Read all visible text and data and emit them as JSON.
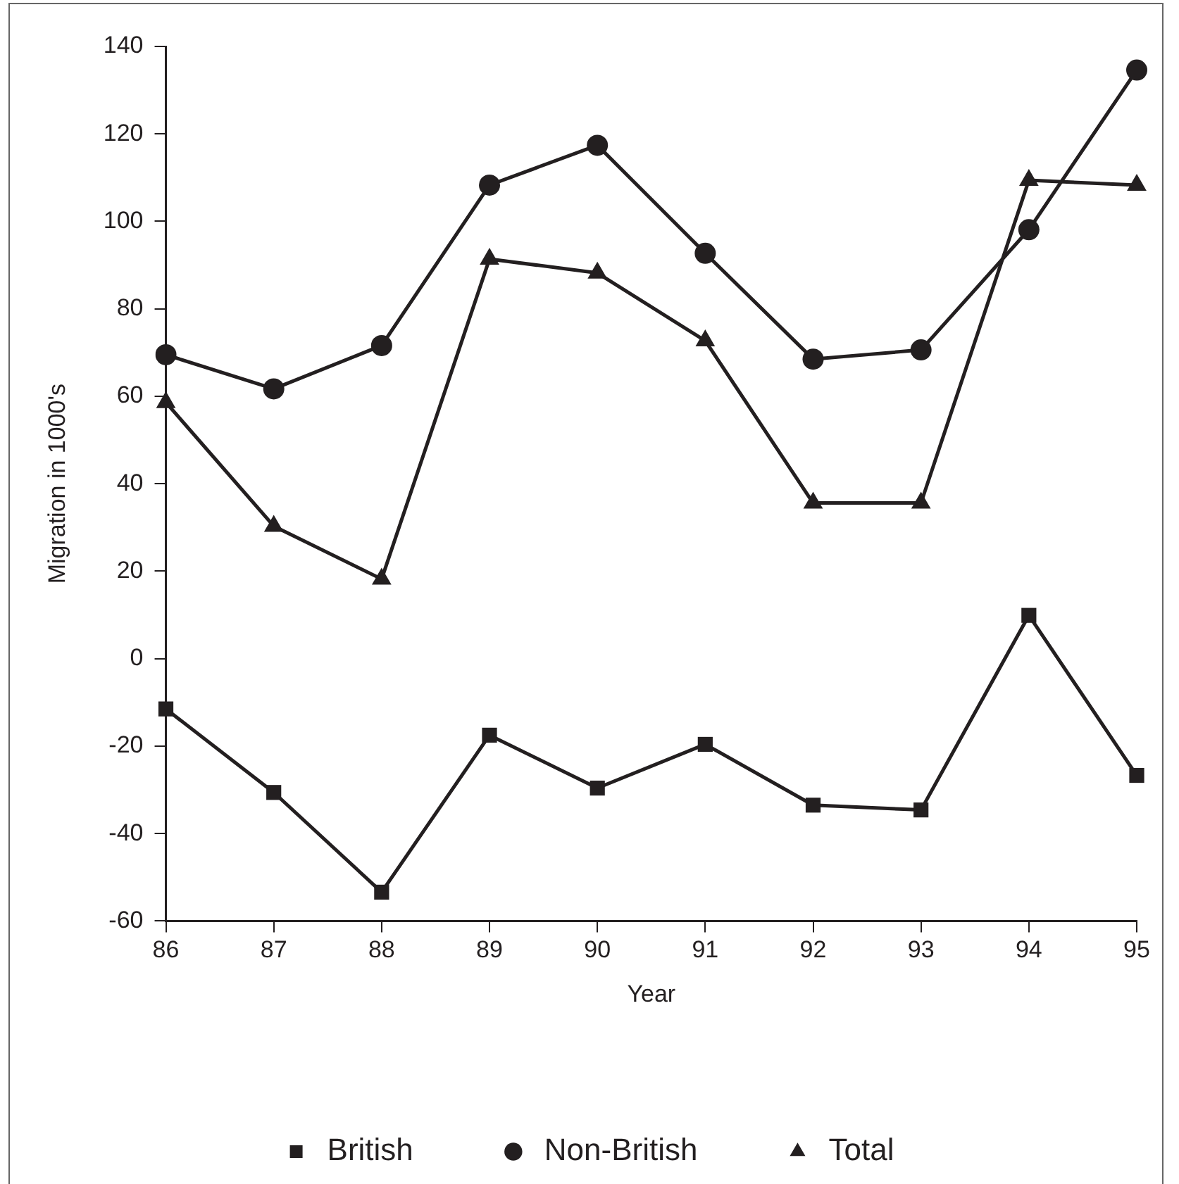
{
  "chart_data": {
    "type": "line",
    "xlabel": "Year",
    "ylabel": "Migration in 1000's",
    "categories": [
      "86",
      "87",
      "88",
      "89",
      "90",
      "91",
      "92",
      "93",
      "94",
      "95"
    ],
    "series": [
      {
        "name": "British",
        "color": "#231f20",
        "marker": "square",
        "values": [
          -11.5,
          -30.6,
          -53.4,
          -17.5,
          -29.6,
          -19.6,
          -33.5,
          -34.6,
          9.9,
          -26.7
        ]
      },
      {
        "name": "Non-British",
        "color": "#231f20",
        "marker": "circle",
        "values": [
          69.5,
          61.7,
          71.6,
          108.3,
          117.4,
          92.7,
          68.5,
          70.6,
          98.1,
          134.6
        ]
      },
      {
        "name": "Total",
        "color": "#231f20",
        "marker": "triangle",
        "values": [
          58.6,
          30.3,
          18.2,
          91.4,
          88.2,
          72.7,
          35.6,
          35.6,
          109.4,
          108.3
        ]
      }
    ],
    "ylim": [
      -60,
      140
    ],
    "yticks": [
      -60,
      -40,
      -20,
      0,
      20,
      40,
      60,
      80,
      100,
      120,
      140
    ],
    "grid": false,
    "legend": "bottom",
    "line_style": "solid"
  }
}
